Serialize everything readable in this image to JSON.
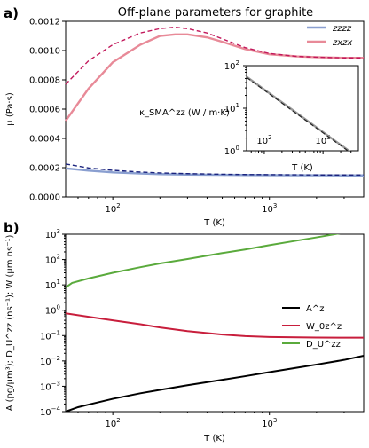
{
  "chart_data": [
    {
      "panel": "a)",
      "type": "line",
      "title": "Off-plane parameters for graphite",
      "xlabel": "T (K)",
      "ylabel": "μ (Pa·s)",
      "xscale": "log",
      "xlim": [
        50,
        4000
      ],
      "ylim": [
        0,
        0.0012
      ],
      "xticks": [
        100,
        1000
      ],
      "xtick_labels": [
        "10",
        "10"
      ],
      "xtick_exponents": [
        "2",
        "3"
      ],
      "yticks": [
        0,
        0.0002,
        0.0004,
        0.0006,
        0.0008,
        0.001,
        0.0012
      ],
      "ytick_labels": [
        "0.0000",
        "0.0002",
        "0.0004",
        "0.0006",
        "0.0008",
        "0.0010",
        "0.0012"
      ],
      "legend_position": "top-right",
      "series": [
        {
          "name": "zzzz",
          "color": "#8a9fd0",
          "style": "solid",
          "x": [
            50,
            70,
            100,
            150,
            200,
            300,
            500,
            700,
            1000,
            1500,
            2000,
            3000,
            4000
          ],
          "y": [
            0.000195,
            0.00018,
            0.000168,
            0.00016,
            0.000156,
            0.000153,
            0.000151,
            0.00015,
            0.000149,
            0.000148,
            0.000148,
            0.000147,
            0.000147
          ]
        },
        {
          "name": "",
          "color": "#1a237e",
          "style": "dashed",
          "x": [
            50,
            70,
            100,
            150,
            200,
            300,
            500,
            700,
            1000,
            1500,
            2000,
            3000,
            4000
          ],
          "y": [
            0.000225,
            0.000198,
            0.000182,
            0.00017,
            0.000164,
            0.000159,
            0.000155,
            0.000153,
            0.000152,
            0.000151,
            0.00015,
            0.00015,
            0.00015
          ]
        },
        {
          "name": "zxzx",
          "color": "#e88a98",
          "style": "solid",
          "x": [
            50,
            70,
            100,
            150,
            200,
            250,
            300,
            400,
            500,
            700,
            1000,
            1500,
            2000,
            3000,
            4000
          ],
          "y": [
            0.00052,
            0.00074,
            0.00092,
            0.00104,
            0.0011,
            0.00111,
            0.00111,
            0.00109,
            0.00106,
            0.00101,
            0.000975,
            0.00096,
            0.000955,
            0.00095,
            0.00095
          ]
        },
        {
          "name": "",
          "color": "#c2185b",
          "style": "dashed",
          "x": [
            50,
            70,
            100,
            150,
            200,
            250,
            300,
            400,
            500,
            700,
            1000,
            1500,
            2000,
            3000,
            4000
          ],
          "y": [
            0.00077,
            0.00093,
            0.00104,
            0.00112,
            0.00115,
            0.00116,
            0.00115,
            0.00112,
            0.00108,
            0.00102,
            0.00098,
            0.00096,
            0.000955,
            0.00095,
            0.00095
          ]
        }
      ],
      "inset": {
        "type": "line",
        "ylabel": "κ_SMA^zz (W / m·K)",
        "xlabel": "T (K)",
        "xscale": "log",
        "yscale": "log",
        "xlim": [
          50,
          4000
        ],
        "ylim": [
          1,
          100
        ],
        "xticks": [
          100,
          1000
        ],
        "xtick_labels": [
          "10",
          "10"
        ],
        "xtick_exponents": [
          "2",
          "3"
        ],
        "yticks": [
          1,
          10,
          100
        ],
        "ytick_labels": [
          "10",
          "10",
          "10"
        ],
        "ytick_exponents": [
          "0",
          "1",
          "2"
        ],
        "series": [
          {
            "color": "#999999",
            "style": "solid",
            "x": [
              50,
              100,
              300,
              1000,
              3500
            ],
            "y": [
              55,
              27.5,
              9.2,
              2.75,
              0.79
            ]
          },
          {
            "color": "#222222",
            "style": "dashed",
            "x": [
              50,
              100,
              300,
              1000,
              3500
            ],
            "y": [
              53,
              26.5,
              8.8,
              2.65,
              0.76
            ]
          }
        ]
      }
    },
    {
      "panel": "b)",
      "type": "line",
      "xlabel": "T (K)",
      "ylabel": "A (pg/μm³); D_U^zz (ns⁻¹); W (μm ns⁻¹)",
      "xscale": "log",
      "yscale": "log",
      "xlim": [
        50,
        4000
      ],
      "ylim": [
        0.0001,
        1000
      ],
      "xticks": [
        100,
        1000
      ],
      "xtick_labels": [
        "10",
        "10"
      ],
      "xtick_exponents": [
        "2",
        "3"
      ],
      "yticks": [
        0.0001,
        0.001,
        0.01,
        0.1,
        1,
        10,
        100,
        1000
      ],
      "ytick_labels": [
        "10",
        "10",
        "10",
        "10",
        "10",
        "10",
        "10",
        "10"
      ],
      "ytick_exponents": [
        "−4",
        "−3",
        "−2",
        "−1",
        "0",
        "1",
        "2",
        "3"
      ],
      "legend_position": "center-right",
      "series": [
        {
          "name": "A^z",
          "color": "#000000",
          "x": [
            50,
            60,
            70,
            100,
            150,
            200,
            300,
            500,
            700,
            1000,
            1500,
            2000,
            3000,
            4000
          ],
          "y": [
            0.0001,
            0.00015,
            0.00019,
            0.00032,
            0.00053,
            0.00072,
            0.0011,
            0.0018,
            0.0025,
            0.0036,
            0.0054,
            0.0072,
            0.011,
            0.016
          ]
        },
        {
          "name": "W_0z^z",
          "color": "#c81e3c",
          "x": [
            50,
            70,
            100,
            150,
            200,
            300,
            500,
            700,
            1000,
            1500,
            2000,
            3000,
            4000
          ],
          "y": [
            0.75,
            0.55,
            0.4,
            0.28,
            0.21,
            0.15,
            0.11,
            0.095,
            0.088,
            0.085,
            0.084,
            0.083,
            0.083
          ]
        },
        {
          "name": "D_U^zz",
          "color": "#5aaa3c",
          "x": [
            50,
            55,
            70,
            100,
            150,
            200,
            300,
            500,
            700,
            1000,
            1500,
            2000,
            3000,
            4000
          ],
          "y": [
            8,
            12,
            18,
            30,
            50,
            70,
            105,
            180,
            250,
            370,
            560,
            750,
            1150,
            1600
          ]
        }
      ]
    }
  ]
}
